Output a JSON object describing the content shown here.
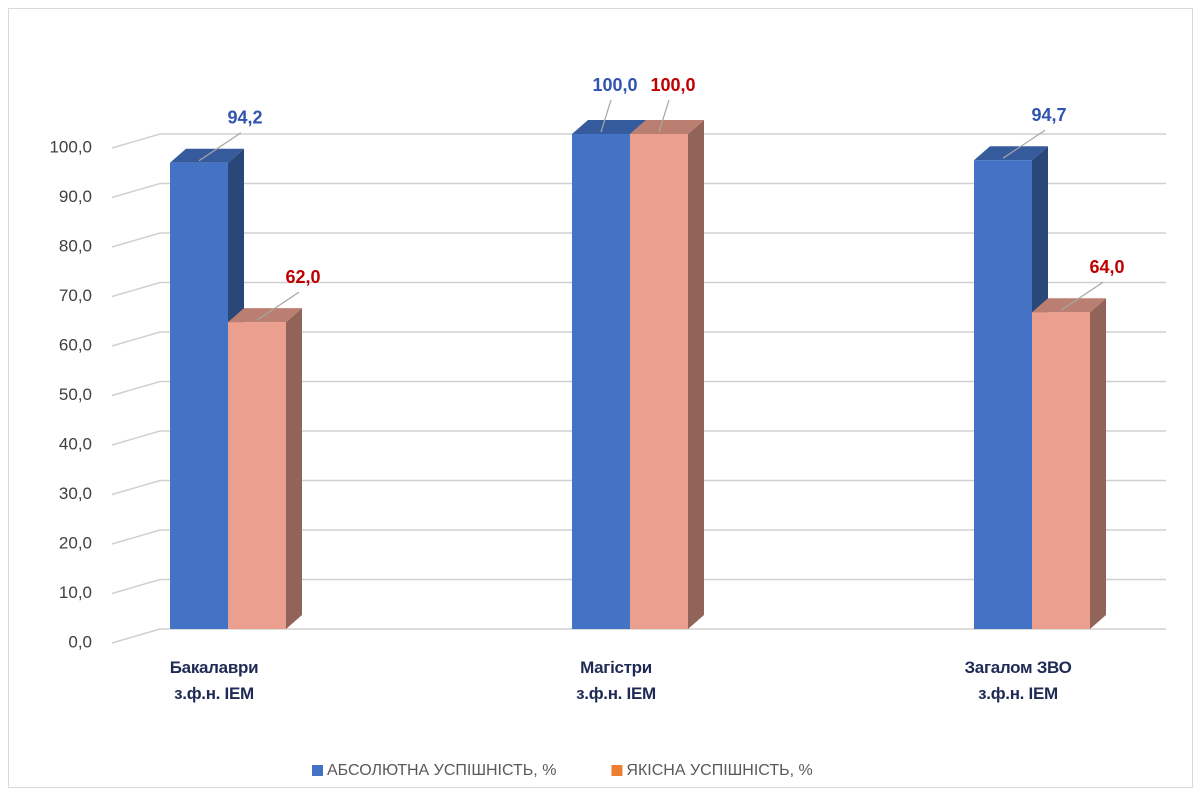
{
  "chart_data": {
    "type": "bar3d",
    "categories": [
      "Бакалаври\nз.ф.н. ІЕМ",
      "Магістри\nз.ф.н. ІЕМ",
      "Загалом  ЗВО\nз.ф.н. ІЕМ"
    ],
    "series": [
      {
        "name": "АБСОЛЮТНА УСПІШНІСТЬ, %",
        "color": "#4472c4",
        "label_color": "#2f55b0",
        "values": [
          94.2,
          100,
          94.7
        ],
        "value_labels": [
          "94,2",
          "100,0",
          "94,7"
        ]
      },
      {
        "name": "ЯКІСНА УСПІШНІСТЬ, %",
        "color": "#ea9f8f",
        "label_color": "#c00000",
        "values": [
          62,
          100,
          64
        ],
        "value_labels": [
          "62,0",
          "100,0",
          "64,0"
        ]
      }
    ],
    "ylim": [
      0,
      100
    ],
    "yticks": [
      {
        "value": 0,
        "label": "0,0"
      },
      {
        "value": 10,
        "label": "10,0"
      },
      {
        "value": 20,
        "label": "20,0"
      },
      {
        "value": 30,
        "label": "30,0"
      },
      {
        "value": 40,
        "label": "40,0"
      },
      {
        "value": 50,
        "label": "50,0"
      },
      {
        "value": 60,
        "label": "60,0"
      },
      {
        "value": 70,
        "label": "70,0"
      },
      {
        "value": 80,
        "label": "80,0"
      },
      {
        "value": 90,
        "label": "90,0"
      },
      {
        "value": 100,
        "label": {
          "value": 100,
          "label": "100,0"
        }
      }
    ],
    "grid": true,
    "legend": "bottom"
  }
}
